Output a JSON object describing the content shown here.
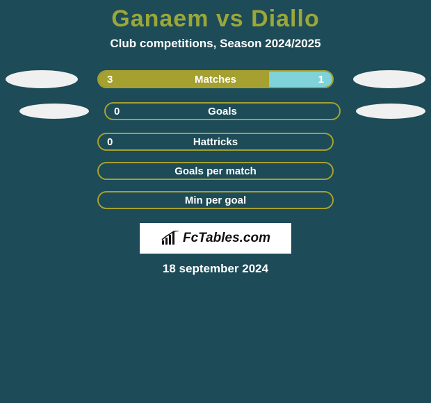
{
  "title": "Ganaem vs Diallo",
  "subtitle": "Club competitions, Season 2024/2025",
  "logo_text": "FcTables.com",
  "date": "18 september 2024",
  "background_color": "#1d4b57",
  "title_color": "#9aa73a",
  "text_color": "#ffffff",
  "ellipse_color": "#f0f0f0",
  "logo_bg": "#ffffff",
  "logo_color": "#111111",
  "rows": [
    {
      "label": "Matches",
      "left_value": "3",
      "right_value": "1",
      "left_fill_pct": 73,
      "right_fill_pct": 27,
      "left_color": "#a5a030",
      "right_color": "#7fd2d8",
      "border_color": "#a5a030",
      "show_left_ellipse": true,
      "show_right_ellipse": true,
      "ellipse_variant": 1
    },
    {
      "label": "Goals",
      "left_value": "0",
      "right_value": "",
      "left_fill_pct": 0,
      "right_fill_pct": 0,
      "left_color": "#a5a030",
      "right_color": "#7fd2d8",
      "border_color": "#a5a030",
      "show_left_ellipse": true,
      "show_right_ellipse": true,
      "ellipse_variant": 2
    },
    {
      "label": "Hattricks",
      "left_value": "0",
      "right_value": "",
      "left_fill_pct": 0,
      "right_fill_pct": 0,
      "left_color": "#a5a030",
      "right_color": "#7fd2d8",
      "border_color": "#a5a030",
      "show_left_ellipse": false,
      "show_right_ellipse": false,
      "ellipse_variant": 0
    },
    {
      "label": "Goals per match",
      "left_value": "",
      "right_value": "",
      "left_fill_pct": 0,
      "right_fill_pct": 0,
      "left_color": "#a5a030",
      "right_color": "#7fd2d8",
      "border_color": "#a5a030",
      "show_left_ellipse": false,
      "show_right_ellipse": false,
      "ellipse_variant": 0
    },
    {
      "label": "Min per goal",
      "left_value": "",
      "right_value": "",
      "left_fill_pct": 0,
      "right_fill_pct": 0,
      "left_color": "#a5a030",
      "right_color": "#7fd2d8",
      "border_color": "#a5a030",
      "show_left_ellipse": false,
      "show_right_ellipse": false,
      "ellipse_variant": 0
    }
  ]
}
